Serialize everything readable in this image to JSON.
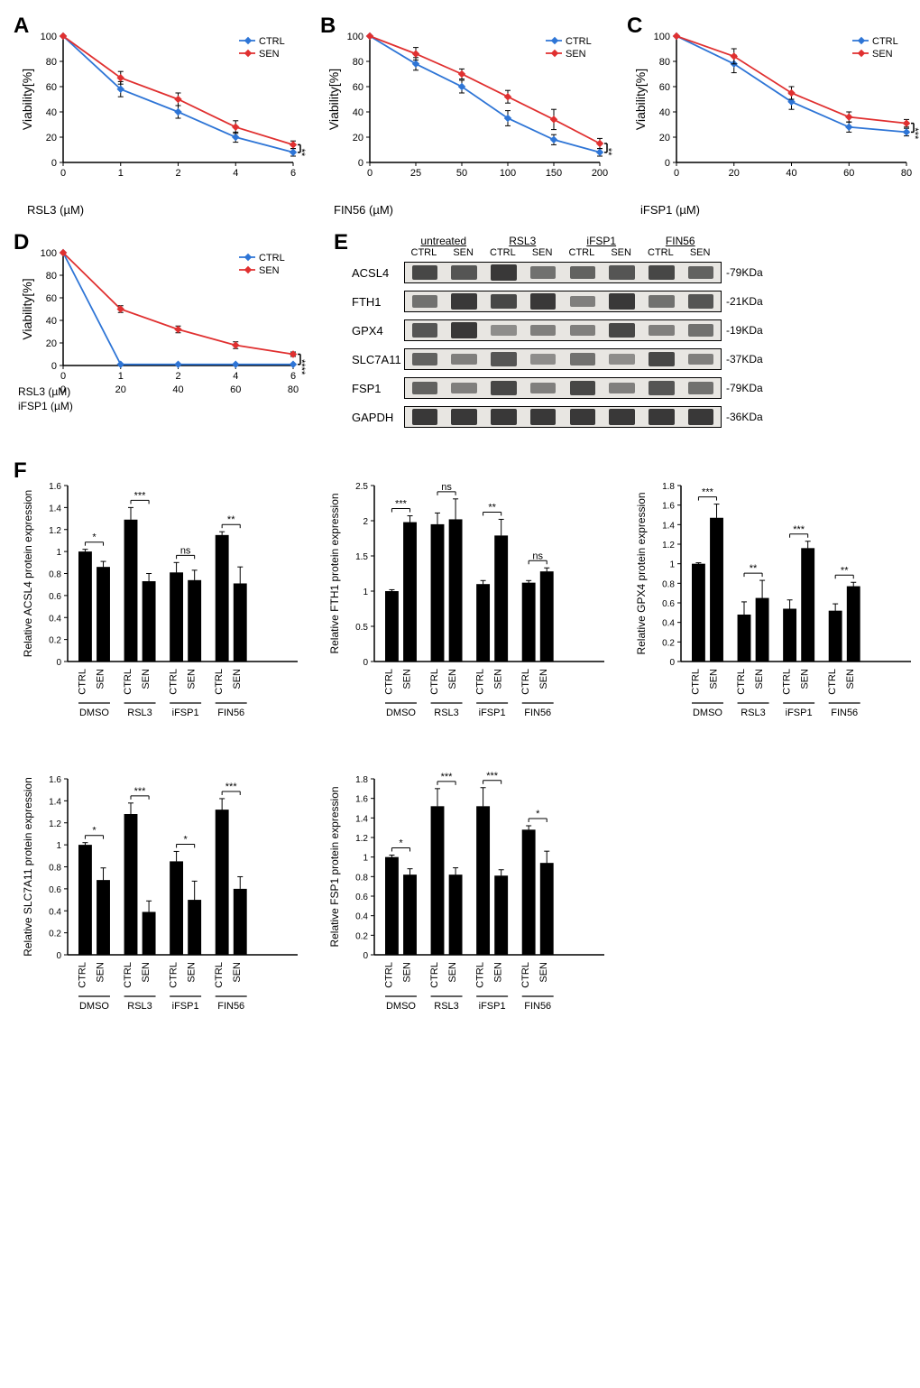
{
  "colors": {
    "ctrl": "#2e75d6",
    "sen": "#e03030",
    "bar": "#000000",
    "axis": "#000000",
    "bg": "#ffffff",
    "grid": "#e0e0e0"
  },
  "panelA": {
    "label": "A",
    "type": "line",
    "xlabel": "RSL3 (µM)",
    "ylabel": "Viability[%]",
    "x": [
      0,
      1,
      2,
      4,
      6
    ],
    "xticks": [
      "0",
      "1",
      "2",
      "4",
      "6"
    ],
    "yticks": [
      0,
      20,
      40,
      60,
      80,
      100
    ],
    "series": {
      "CTRL": [
        100,
        58,
        40,
        20,
        8
      ],
      "CTRL_err": [
        0,
        6,
        5,
        4,
        3
      ],
      "SEN": [
        100,
        67,
        50,
        28,
        14
      ],
      "SEN_err": [
        0,
        5,
        5,
        5,
        3
      ]
    },
    "sig": "**"
  },
  "panelB": {
    "label": "B",
    "type": "line",
    "xlabel": "FIN56 (µM)",
    "ylabel": "Viability[%]",
    "x": [
      0,
      25,
      50,
      100,
      150,
      200
    ],
    "xticks": [
      "0",
      "25",
      "50",
      "100",
      "150",
      "200"
    ],
    "yticks": [
      0,
      20,
      40,
      60,
      80,
      100
    ],
    "series": {
      "CTRL": [
        100,
        78,
        60,
        35,
        18,
        8
      ],
      "CTRL_err": [
        0,
        5,
        5,
        6,
        4,
        3
      ],
      "SEN": [
        100,
        86,
        70,
        52,
        34,
        15
      ],
      "SEN_err": [
        0,
        5,
        4,
        5,
        8,
        4
      ]
    },
    "sig": "**"
  },
  "panelC": {
    "label": "C",
    "type": "line",
    "xlabel": "iFSP1 (µM)",
    "ylabel": "Viability[%]",
    "x": [
      0,
      20,
      40,
      60,
      80
    ],
    "xticks": [
      "0",
      "20",
      "40",
      "60",
      "80"
    ],
    "yticks": [
      0,
      20,
      40,
      60,
      80,
      100
    ],
    "series": {
      "CTRL": [
        100,
        78,
        48,
        28,
        24
      ],
      "CTRL_err": [
        0,
        7,
        6,
        4,
        3
      ],
      "SEN": [
        100,
        84,
        55,
        36,
        31
      ],
      "SEN_err": [
        0,
        6,
        5,
        4,
        3
      ]
    },
    "sig": "***"
  },
  "panelD": {
    "label": "D",
    "type": "line",
    "xlabel1": "RSL3 (µM)",
    "xlabel2": "iFSP1 (µM)",
    "ylabel": "Viability[%]",
    "x": [
      0,
      1,
      2,
      4,
      6
    ],
    "xticks1": [
      "0",
      "1",
      "2",
      "4",
      "6"
    ],
    "xticks2": [
      "0",
      "20",
      "40",
      "60",
      "80"
    ],
    "yticks": [
      0,
      20,
      40,
      60,
      80,
      100
    ],
    "series": {
      "CTRL": [
        100,
        1,
        1,
        1,
        1
      ],
      "CTRL_err": [
        0,
        0,
        0,
        0,
        0
      ],
      "SEN": [
        100,
        50,
        32,
        18,
        10
      ],
      "SEN_err": [
        0,
        3,
        3,
        3,
        2
      ]
    },
    "sig": "****"
  },
  "panelE": {
    "label": "E",
    "conditions": [
      "untreated",
      "RSL3",
      "iFSP1",
      "FIN56"
    ],
    "samples": [
      "CTRL",
      "SEN",
      "CTRL",
      "SEN",
      "CTRL",
      "SEN",
      "CTRL",
      "SEN"
    ],
    "proteins": [
      {
        "name": "ACSL4",
        "size": "-79KDa",
        "intensities": [
          0.8,
          0.7,
          0.9,
          0.5,
          0.6,
          0.7,
          0.8,
          0.6
        ]
      },
      {
        "name": "FTH1",
        "size": "-21KDa",
        "intensities": [
          0.5,
          0.9,
          0.8,
          0.9,
          0.4,
          0.9,
          0.5,
          0.7
        ]
      },
      {
        "name": "GPX4",
        "size": "-19KDa",
        "intensities": [
          0.7,
          0.9,
          0.3,
          0.4,
          0.4,
          0.8,
          0.4,
          0.5
        ]
      },
      {
        "name": "SLC7A11",
        "size": "-37KDa",
        "intensities": [
          0.6,
          0.4,
          0.7,
          0.3,
          0.5,
          0.3,
          0.8,
          0.4
        ]
      },
      {
        "name": "FSP1",
        "size": "-79KDa",
        "intensities": [
          0.6,
          0.4,
          0.8,
          0.4,
          0.8,
          0.4,
          0.7,
          0.5
        ]
      },
      {
        "name": "GAPDH",
        "size": "-36KDa",
        "intensities": [
          0.9,
          0.9,
          0.9,
          0.9,
          0.9,
          0.9,
          0.9,
          0.9
        ]
      }
    ]
  },
  "panelF": {
    "label": "F",
    "charts": [
      {
        "ylabel": "Relative ACSL4 protein  expression",
        "yticks": [
          0,
          0.2,
          0.4,
          0.6,
          0.8,
          1.0,
          1.2,
          1.4,
          1.6
        ],
        "ymax": 1.6,
        "groups": [
          "DMSO",
          "RSL3",
          "iFSP1",
          "FIN56"
        ],
        "bars": [
          "CTRL",
          "SEN",
          "CTRL",
          "SEN",
          "CTRL",
          "SEN",
          "CTRL",
          "SEN"
        ],
        "values": [
          1.0,
          0.86,
          1.29,
          0.73,
          0.81,
          0.74,
          1.15,
          0.71
        ],
        "errors": [
          0.02,
          0.05,
          0.11,
          0.07,
          0.09,
          0.09,
          0.03,
          0.15
        ],
        "sigs": [
          "*",
          "***",
          "ns",
          "**"
        ]
      },
      {
        "ylabel": "Relative FTH1 protein  expression",
        "yticks": [
          0,
          0.5,
          1.0,
          1.5,
          2.0,
          2.5
        ],
        "ymax": 2.5,
        "groups": [
          "DMSO",
          "RSL3",
          "iFSP1",
          "FIN56"
        ],
        "bars": [
          "CTRL",
          "SEN",
          "CTRL",
          "SEN",
          "CTRL",
          "SEN",
          "CTRL",
          "SEN"
        ],
        "values": [
          1.0,
          1.98,
          1.95,
          2.02,
          1.1,
          1.79,
          1.12,
          1.28
        ],
        "errors": [
          0.02,
          0.09,
          0.16,
          0.29,
          0.05,
          0.23,
          0.03,
          0.05
        ],
        "sigs": [
          "***",
          "ns",
          "**",
          "ns"
        ]
      },
      {
        "ylabel": "Relative GPX4 protein  expression",
        "yticks": [
          0,
          0.2,
          0.4,
          0.6,
          0.8,
          1.0,
          1.2,
          1.4,
          1.6,
          1.8
        ],
        "ymax": 1.8,
        "groups": [
          "DMSO",
          "RSL3",
          "iFSP1",
          "FIN56"
        ],
        "bars": [
          "CTRL",
          "SEN",
          "CTRL",
          "SEN",
          "CTRL",
          "SEN",
          "CTRL",
          "SEN"
        ],
        "values": [
          1.0,
          1.47,
          0.48,
          0.65,
          0.54,
          1.16,
          0.52,
          0.77
        ],
        "errors": [
          0.01,
          0.14,
          0.13,
          0.18,
          0.09,
          0.07,
          0.07,
          0.04
        ],
        "sigs": [
          "***",
          "**",
          "***",
          "**"
        ]
      },
      {
        "ylabel": "Relative SLC7A11 protein  expression",
        "yticks": [
          0,
          0.2,
          0.4,
          0.6,
          0.8,
          1.0,
          1.2,
          1.4,
          1.6
        ],
        "ymax": 1.6,
        "groups": [
          "DMSO",
          "RSL3",
          "iFSP1",
          "FIN56"
        ],
        "bars": [
          "CTRL",
          "SEN",
          "CTRL",
          "SEN",
          "CTRL",
          "SEN",
          "CTRL",
          "SEN"
        ],
        "values": [
          1.0,
          0.68,
          1.28,
          0.39,
          0.85,
          0.5,
          1.32,
          0.6
        ],
        "errors": [
          0.02,
          0.11,
          0.1,
          0.1,
          0.09,
          0.17,
          0.1,
          0.11
        ],
        "sigs": [
          "*",
          "***",
          "*",
          "***"
        ]
      },
      {
        "ylabel": "Relative FSP1 protein  expression",
        "yticks": [
          0,
          0.2,
          0.4,
          0.6,
          0.8,
          1.0,
          1.2,
          1.4,
          1.6,
          1.8
        ],
        "ymax": 1.8,
        "groups": [
          "DMSO",
          "RSL3",
          "iFSP1",
          "FIN56"
        ],
        "bars": [
          "CTRL",
          "SEN",
          "CTRL",
          "SEN",
          "CTRL",
          "SEN",
          "CTRL",
          "SEN"
        ],
        "values": [
          1.0,
          0.82,
          1.52,
          0.82,
          1.52,
          0.81,
          1.28,
          0.94
        ],
        "errors": [
          0.02,
          0.06,
          0.18,
          0.07,
          0.19,
          0.06,
          0.04,
          0.12
        ],
        "sigs": [
          "*",
          "***",
          "***",
          "*"
        ]
      }
    ]
  }
}
